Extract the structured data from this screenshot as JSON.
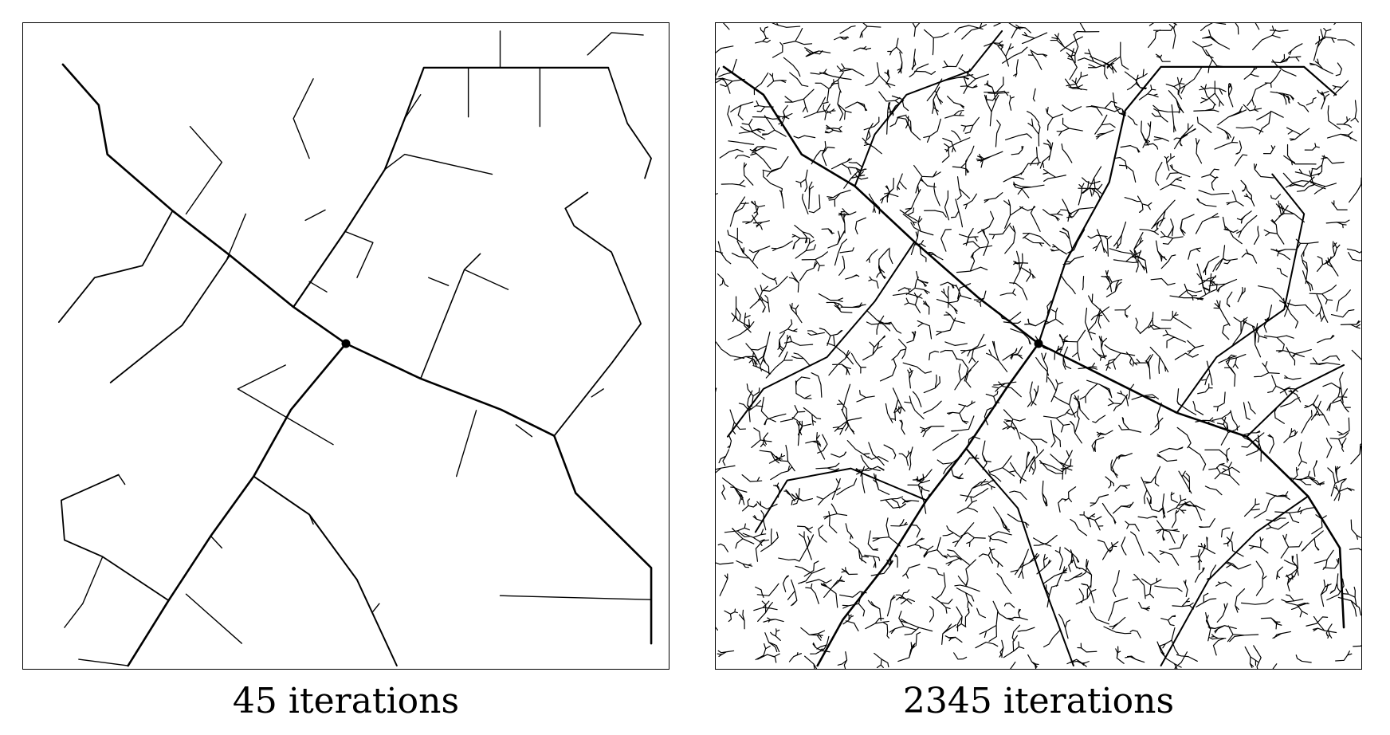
{
  "panels": [
    {
      "caption": "45 iterations",
      "iterations": 45
    },
    {
      "caption": "2345 iterations",
      "iterations": 2345
    }
  ],
  "colors": {
    "stroke": "#000000",
    "background": "#ffffff"
  }
}
